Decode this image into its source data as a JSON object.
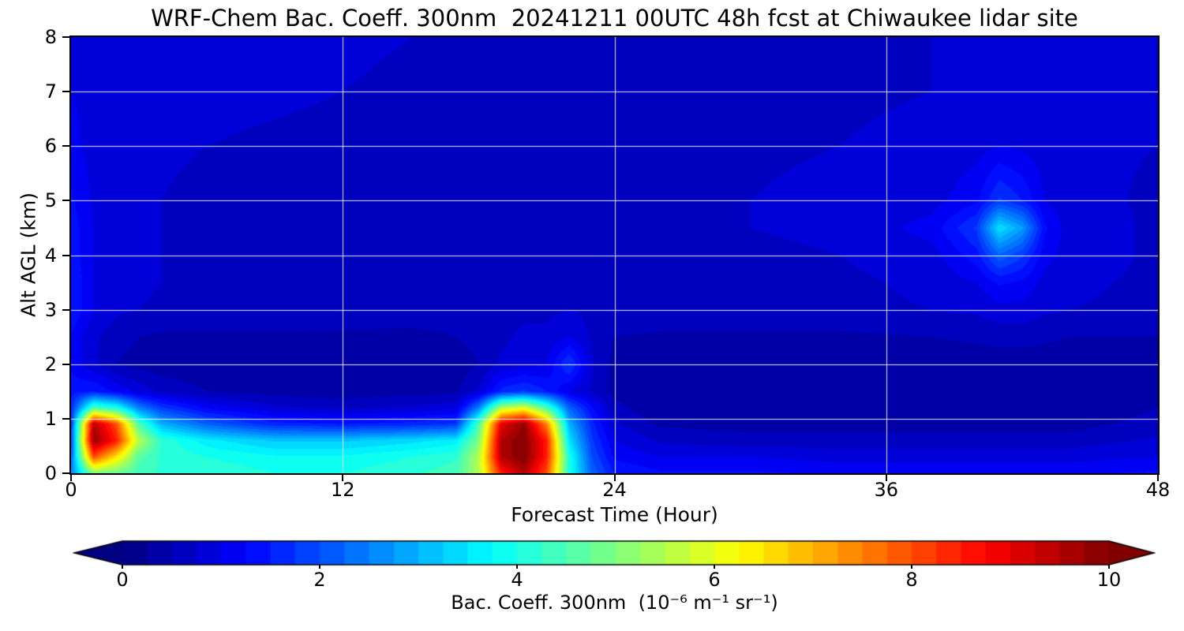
{
  "title": "WRF-Chem Bac. Coeff. 300nm  20241211 00UTC 48h fcst at Chiwaukee lidar site",
  "axes": {
    "xlabel": "Forecast Time (Hour)",
    "ylabel": "Alt AGL (km)",
    "xlim": [
      0,
      48
    ],
    "ylim": [
      0,
      8
    ],
    "xticks": [
      0,
      12,
      24,
      36,
      48
    ],
    "yticks": [
      0,
      1,
      2,
      3,
      4,
      5,
      6,
      7,
      8
    ]
  },
  "colorbar": {
    "label": "Bac. Coeff. 300nm  (10⁻⁶ m⁻¹ sr⁻¹)",
    "ticks": [
      0,
      2,
      4,
      6,
      8,
      10
    ],
    "vmin": 0,
    "vmax": 10,
    "levels_step": 0.25,
    "colormap": "jet",
    "extend": "both"
  },
  "chart_data": {
    "type": "heatmap",
    "title": "WRF-Chem Bac. Coeff. 300nm  20241211 00UTC 48h fcst at Chiwaukee lidar site",
    "xlabel": "Forecast Time (Hour)",
    "ylabel": "Alt AGL (km)",
    "units": "10^-6 m^-1 sr^-1",
    "grid": {
      "x_lines": [
        12,
        24,
        36
      ],
      "y_lines": [
        1,
        2,
        3,
        4,
        5,
        6,
        7
      ],
      "color": "#ffffff"
    },
    "x_hours": [
      0,
      1,
      2,
      3,
      4,
      6,
      9,
      12,
      15,
      17,
      18,
      19,
      20,
      21,
      22,
      23,
      24,
      26,
      30,
      34,
      38,
      40,
      41,
      42,
      43,
      44,
      48
    ],
    "y_km": [
      0,
      0.3,
      0.6,
      0.9,
      1.2,
      1.5,
      2.0,
      2.5,
      3.0,
      3.5,
      4.0,
      4.5,
      5.0,
      6.0,
      7.0,
      8.0
    ],
    "values": [
      [
        2.5,
        5.0,
        4.8,
        4.4,
        4.2,
        4.2,
        4.0,
        4.0,
        4.2,
        4.4,
        5.5,
        8.5,
        9.5,
        8.0,
        4.0,
        2.2,
        1.5,
        1.3,
        1.3,
        1.2,
        1.2,
        1.2,
        1.2,
        1.2,
        1.2,
        1.2,
        1.3
      ],
      [
        2.2,
        8.0,
        6.5,
        4.6,
        4.2,
        4.0,
        3.8,
        3.8,
        4.0,
        4.2,
        5.5,
        9.5,
        10.0,
        8.5,
        4.0,
        2.0,
        1.2,
        1.0,
        1.0,
        0.9,
        0.9,
        0.9,
        0.9,
        0.9,
        0.9,
        0.9,
        1.0
      ],
      [
        2.0,
        9.8,
        8.5,
        5.5,
        4.2,
        3.6,
        3.2,
        3.2,
        3.4,
        3.6,
        5.0,
        9.5,
        10.0,
        8.5,
        3.5,
        1.8,
        1.0,
        0.7,
        0.6,
        0.6,
        0.6,
        0.6,
        0.6,
        0.6,
        0.6,
        0.6,
        0.8
      ],
      [
        1.8,
        9.5,
        8.0,
        4.5,
        3.0,
        2.2,
        1.6,
        1.5,
        1.6,
        1.8,
        4.5,
        9.0,
        9.8,
        7.5,
        3.0,
        1.6,
        0.8,
        0.45,
        0.4,
        0.4,
        0.4,
        0.4,
        0.4,
        0.4,
        0.4,
        0.4,
        0.6
      ],
      [
        1.6,
        4.5,
        4.0,
        2.5,
        1.8,
        1.2,
        0.8,
        0.7,
        0.8,
        0.9,
        2.5,
        5.5,
        6.0,
        4.5,
        2.2,
        1.3,
        0.6,
        0.3,
        0.3,
        0.3,
        0.3,
        0.3,
        0.3,
        0.3,
        0.3,
        0.3,
        0.5
      ],
      [
        1.4,
        1.5,
        1.2,
        0.9,
        0.7,
        0.5,
        0.4,
        0.35,
        0.4,
        0.45,
        0.8,
        1.6,
        1.8,
        1.5,
        1.0,
        0.7,
        0.4,
        0.25,
        0.25,
        0.25,
        0.25,
        0.3,
        0.3,
        0.3,
        0.3,
        0.3,
        0.4
      ],
      [
        1.2,
        0.8,
        0.5,
        0.4,
        0.35,
        0.3,
        0.3,
        0.3,
        0.3,
        0.35,
        0.5,
        0.8,
        0.9,
        1.0,
        1.8,
        0.8,
        0.4,
        0.3,
        0.3,
        0.3,
        0.3,
        0.35,
        0.35,
        0.35,
        0.35,
        0.35,
        0.4
      ],
      [
        1.2,
        0.8,
        0.6,
        0.5,
        0.45,
        0.45,
        0.45,
        0.45,
        0.45,
        0.5,
        0.6,
        0.7,
        0.8,
        0.8,
        1.0,
        0.7,
        0.5,
        0.45,
        0.45,
        0.45,
        0.5,
        0.55,
        0.6,
        0.6,
        0.55,
        0.5,
        0.5
      ],
      [
        1.5,
        1.0,
        0.8,
        0.75,
        0.7,
        0.7,
        0.7,
        0.65,
        0.6,
        0.6,
        0.6,
        0.65,
        0.7,
        0.7,
        0.75,
        0.7,
        0.7,
        0.7,
        0.7,
        0.7,
        0.75,
        0.8,
        0.9,
        0.9,
        0.8,
        0.75,
        0.7
      ],
      [
        1.5,
        1.0,
        0.85,
        0.8,
        0.75,
        0.7,
        0.65,
        0.6,
        0.55,
        0.55,
        0.55,
        0.6,
        0.65,
        0.65,
        0.7,
        0.7,
        0.7,
        0.7,
        0.7,
        0.7,
        0.8,
        1.0,
        1.3,
        1.2,
        0.9,
        0.8,
        0.7
      ],
      [
        1.4,
        1.0,
        0.85,
        0.8,
        0.75,
        0.7,
        0.65,
        0.6,
        0.55,
        0.55,
        0.55,
        0.6,
        0.6,
        0.65,
        0.7,
        0.7,
        0.7,
        0.7,
        0.7,
        0.75,
        0.9,
        1.4,
        2.2,
        1.8,
        1.1,
        0.9,
        0.7
      ],
      [
        1.4,
        1.0,
        0.9,
        0.8,
        0.75,
        0.7,
        0.65,
        0.6,
        0.55,
        0.55,
        0.55,
        0.6,
        0.6,
        0.65,
        0.7,
        0.7,
        0.7,
        0.7,
        0.75,
        0.8,
        1.1,
        1.8,
        3.5,
        2.8,
        1.3,
        0.9,
        0.7
      ],
      [
        1.3,
        0.95,
        0.85,
        0.8,
        0.75,
        0.7,
        0.68,
        0.65,
        0.6,
        0.6,
        0.6,
        0.6,
        0.65,
        0.65,
        0.7,
        0.7,
        0.7,
        0.7,
        0.75,
        0.8,
        0.9,
        1.2,
        1.8,
        1.5,
        1.0,
        0.85,
        0.7
      ],
      [
        1.1,
        0.9,
        0.85,
        0.8,
        0.78,
        0.75,
        0.72,
        0.7,
        0.68,
        0.68,
        0.68,
        0.68,
        0.7,
        0.7,
        0.72,
        0.72,
        0.72,
        0.72,
        0.72,
        0.75,
        0.8,
        0.9,
        1.0,
        0.95,
        0.85,
        0.8,
        0.75
      ],
      [
        1.0,
        0.9,
        0.88,
        0.85,
        0.82,
        0.8,
        0.78,
        0.75,
        0.72,
        0.72,
        0.7,
        0.7,
        0.7,
        0.72,
        0.72,
        0.72,
        0.72,
        0.7,
        0.7,
        0.72,
        0.75,
        0.8,
        0.85,
        0.82,
        0.8,
        0.78,
        0.75
      ],
      [
        1.0,
        0.92,
        0.9,
        0.88,
        0.85,
        0.82,
        0.8,
        0.78,
        0.75,
        0.75,
        0.72,
        0.72,
        0.72,
        0.72,
        0.72,
        0.72,
        0.72,
        0.7,
        0.7,
        0.72,
        0.75,
        0.78,
        0.8,
        0.8,
        0.78,
        0.76,
        0.75
      ]
    ]
  }
}
